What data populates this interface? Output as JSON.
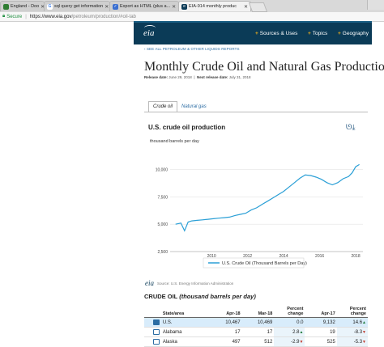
{
  "browser": {
    "tabs": [
      {
        "label": "England - Doo",
        "icon": "page-icon",
        "color": "#2f7d32"
      },
      {
        "label": "sql query get information",
        "icon": "google-icon",
        "color": "#4285f4"
      },
      {
        "label": "Export as HTML (plus a...",
        "icon": "doc-icon",
        "color": "#3b6fd1"
      },
      {
        "label": "EIA-914 monthly produc",
        "icon": "eia-icon",
        "color": "#0b3b57"
      }
    ],
    "address": {
      "secure_label": "Secure",
      "host": "https://www.eia.gov",
      "path": "/petroleum/production/#oil-tab"
    }
  },
  "nav": {
    "logo": "eia",
    "links": [
      "Sources & Uses",
      "Topics",
      "Geography"
    ]
  },
  "page": {
    "backlink": "‹ SEE ALL PETROLEUM & OTHER LIQUIDS REPORTS",
    "title": "Monthly Crude Oil and Natural Gas Production",
    "release_label": "Release date:",
    "release_date": "June 29, 2018",
    "next_label": "Next release date:",
    "next_date": "July 31, 2018",
    "tabs": [
      "Crude oil",
      "Natural gas"
    ]
  },
  "chart_data": {
    "type": "line",
    "title": "U.S. crude oil production",
    "ylabel": "thousand barrels per day",
    "ylim": [
      2500,
      11000
    ],
    "yticks": [
      "10,000",
      "7,500",
      "5,000",
      "2,500"
    ],
    "xticks": [
      "2010",
      "2012",
      "2014",
      "2016",
      "2018"
    ],
    "x": [
      2008.0,
      2008.3,
      2008.5,
      2008.7,
      2008.9,
      2009.2,
      2009.5,
      2009.8,
      2010.1,
      2010.4,
      2010.7,
      2011.0,
      2011.3,
      2011.6,
      2011.9,
      2012.2,
      2012.5,
      2012.8,
      2013.1,
      2013.4,
      2013.7,
      2014.0,
      2014.3,
      2014.6,
      2014.9,
      2015.2,
      2015.5,
      2015.8,
      2016.1,
      2016.4,
      2016.7,
      2017.0,
      2017.3,
      2017.6,
      2017.8,
      2018.0,
      2018.2
    ],
    "series": [
      {
        "name": "U.S. Crude Oil (Thousand Barrels per Day)",
        "color": "#2a9fd6",
        "values": [
          5000,
          5100,
          4400,
          5200,
          5300,
          5350,
          5400,
          5450,
          5500,
          5550,
          5600,
          5650,
          5800,
          5900,
          6000,
          6300,
          6500,
          6800,
          7100,
          7400,
          7700,
          8000,
          8400,
          8800,
          9200,
          9500,
          9450,
          9300,
          9100,
          8800,
          8600,
          8800,
          9150,
          9350,
          9700,
          10250,
          10450
        ]
      }
    ],
    "legend": "bottom",
    "source_label": "Source: U.S. Energy Information Administration"
  },
  "table": {
    "title_prefix": "CRUDE OIL",
    "title_unit": "(thousand barrels per day)",
    "headers": [
      "State/area",
      "Apr-18",
      "Mar-18",
      "Percent change",
      "Apr-17",
      "Percent change"
    ],
    "rows": [
      {
        "name": "U.S.",
        "apr18": "10,467",
        "mar18": "10,469",
        "chg1": "0.0",
        "chg1_dir": "",
        "apr17": "9,132",
        "chg2": "14.6",
        "chg2_dir": "up",
        "checked": true
      },
      {
        "name": "Alabama",
        "apr18": "17",
        "mar18": "17",
        "chg1": "2.8",
        "chg1_dir": "up",
        "apr17": "19",
        "chg2": "-8.3",
        "chg2_dir": "down",
        "checked": false
      },
      {
        "name": "Alaska",
        "apr18": "497",
        "mar18": "512",
        "chg1": "-2.9",
        "chg1_dir": "down",
        "apr17": "525",
        "chg2": "-5.3",
        "chg2_dir": "down",
        "checked": false
      }
    ]
  }
}
